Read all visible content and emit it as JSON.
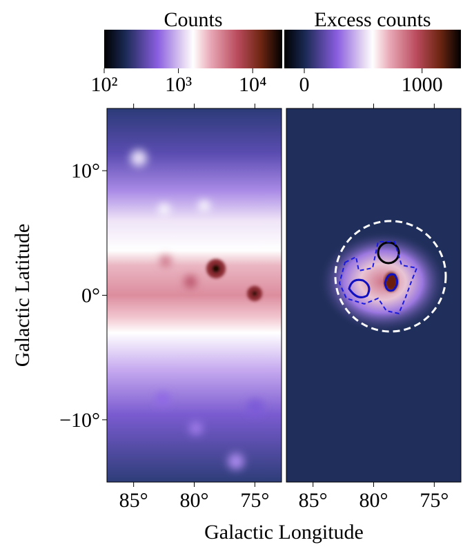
{
  "chart_data": [
    {
      "type": "image",
      "xlabel": "Galactic Longitude",
      "ylabel": "Galactic Latitude",
      "xlim": [
        87.2,
        72.8
      ],
      "ylim": [
        -15,
        15
      ],
      "xticks": [
        {
          "value": 85,
          "label": "85°"
        },
        {
          "value": 80,
          "label": "80°"
        },
        {
          "value": 75,
          "label": "75°"
        }
      ],
      "yticks": [
        {
          "value": -10,
          "label": "−10°"
        },
        {
          "value": 0,
          "label": "0°"
        },
        {
          "value": 10,
          "label": "10°"
        }
      ],
      "colorbar": {
        "label": "Counts",
        "scale": "log",
        "lim": [
          100,
          25000
        ],
        "ticks": [
          {
            "value": 100,
            "label": "10²"
          },
          {
            "value": 1000,
            "label": "10³"
          },
          {
            "value": 10000,
            "label": "10⁴"
          }
        ]
      }
    },
    {
      "type": "image",
      "xlim": [
        87.2,
        72.8
      ],
      "ylim": [
        -15,
        15
      ],
      "xticks": [
        {
          "value": 85,
          "label": "85°"
        },
        {
          "value": 80,
          "label": "80°"
        },
        {
          "value": 75,
          "label": "75°"
        }
      ],
      "colorbar": {
        "label": "Excess counts",
        "scale": "linear",
        "lim": [
          -170,
          1330
        ],
        "ticks": [
          0,
          1000
        ]
      }
    }
  ]
}
